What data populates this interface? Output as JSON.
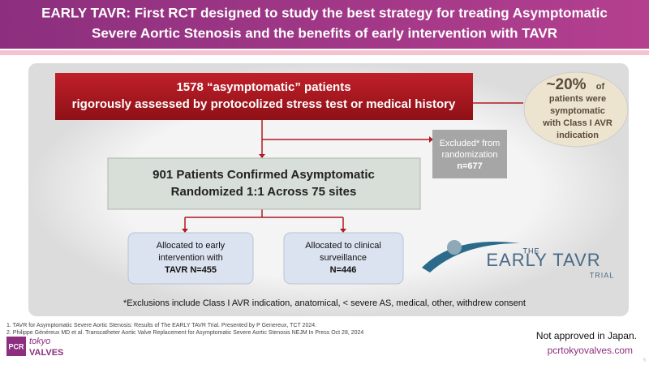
{
  "header": {
    "title_lines": [
      "EARLY TAVR: First RCT designed to study the best strategy for treating Asymptomatic",
      "Severe Aortic Stenosis and the benefits of early intervention with TAVR"
    ]
  },
  "nodes": [
    {
      "lines": [
        "1578 “asymptomatic” patients",
        "rigorously assessed by protocolized stress test or medical history"
      ]
    },
    {
      "big": "~20%",
      "small": "of",
      "lines": [
        "patients were",
        "symptomatic",
        "with Class I AVR",
        "indication"
      ]
    },
    {
      "lines": [
        "Excluded* from",
        "randomization"
      ],
      "bold": "n=677"
    },
    {
      "lines": [
        "901 Patients Confirmed Asymptomatic",
        "Randomized 1:1 Across 75 sites"
      ]
    },
    {
      "lines": [
        "Allocated to early",
        "intervention with"
      ],
      "bold": "TAVR N=455"
    },
    {
      "lines": [
        "Allocated to clinical",
        "surveillance"
      ],
      "bold": "N=446"
    }
  ],
  "footnote": "*Exclusions include Class I AVR indication, anatomical, < severe AS, medical, other, withdrew consent",
  "logo": {
    "top": "THE",
    "main": "EARLY TAVR",
    "bottom": "TRIAL"
  },
  "references": [
    "1. TAVR for Asymptomatic Severe Aortic Stenosis: Results of The EARLY TAVR Trial. Presented by P Genereux, TCT 2024.",
    "2. Philippe Généreux MD et al. Transcatheter Aortic Valve Replacement for Asymptomatic Severe Aortic Stenosis NEJM In Press Oct 28, 2024"
  ],
  "footer": {
    "brand_pcr": "PCR",
    "brand_tokyo": "tokyo",
    "brand_valves": "VALVES",
    "disclaimer": "Not approved in Japan.",
    "website": "pcrtokyovalves.com",
    "page": "5"
  }
}
